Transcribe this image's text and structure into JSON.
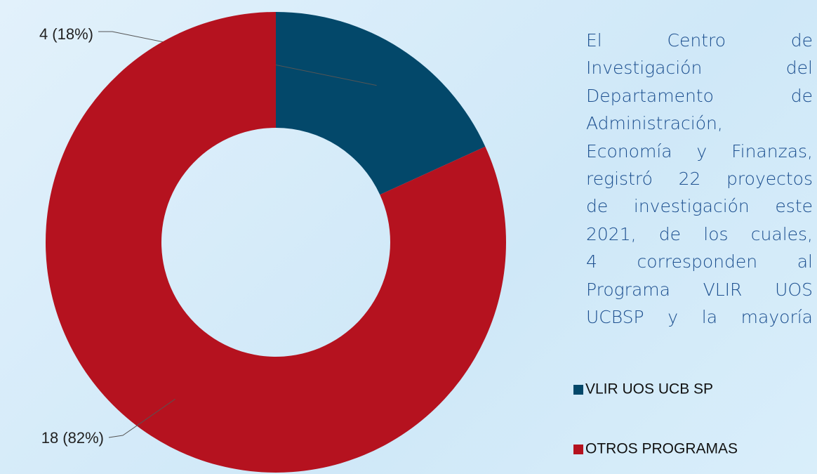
{
  "chart_data": {
    "type": "donut",
    "categories": [
      "VLIR UOS UCB SP",
      "OTROS PROGRAMAS"
    ],
    "values": [
      4,
      18
    ],
    "value_labels": [
      "4 (18%)",
      "18 (82%)"
    ],
    "colors": [
      "#03486a",
      "#b5121f"
    ],
    "legend": "bottom-right"
  },
  "text": {
    "lines": [
      "El Centro de",
      "Investigación del",
      "Departamento de",
      "Administración,",
      "Economía y Finanzas,",
      "registró 22 proyectos",
      "de investigación este",
      "2021, de los cuales,",
      "4 corresponden al",
      "Programa VLIR UOS",
      "UCBSP y la mayoría"
    ]
  }
}
